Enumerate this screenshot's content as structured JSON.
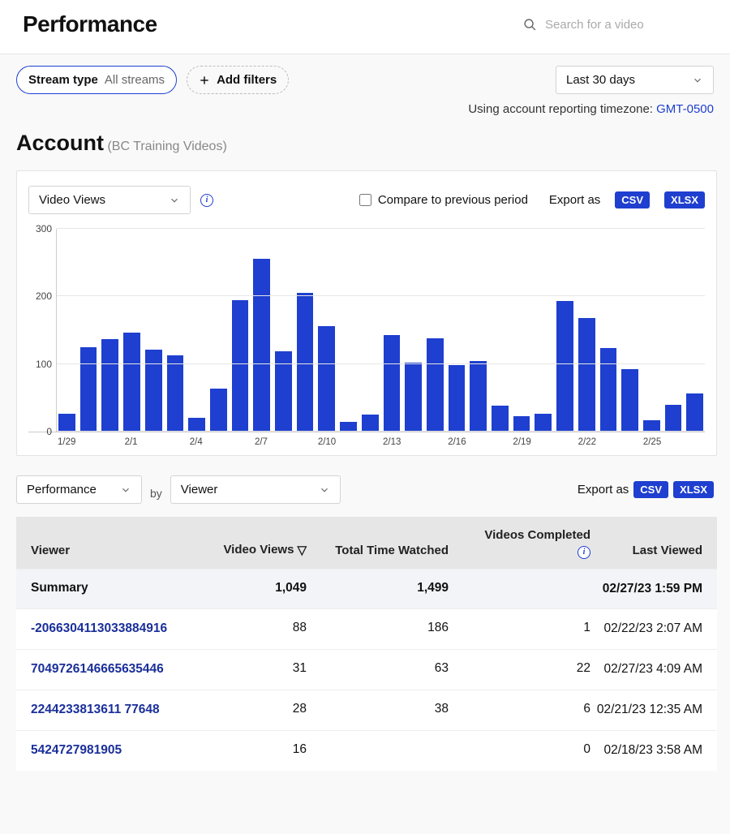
{
  "page": {
    "title": "Performance"
  },
  "search": {
    "placeholder": "Search for a video"
  },
  "filters": {
    "stream_label": "Stream type",
    "stream_value": "All streams",
    "add_label": "Add filters",
    "range_label": "Last 30 days"
  },
  "timezone": {
    "prefix": "Using account reporting timezone: ",
    "value": "GMT-0500"
  },
  "account": {
    "title": "Account",
    "subtitle": "(BC Training Videos)"
  },
  "chart": {
    "type": "bar",
    "metric_label": "Video Views",
    "compare_label": "Compare to previous period",
    "export_label": "Export as",
    "export_csv": "CSV",
    "export_xlsx": "XLSX",
    "ylim": [
      0,
      300
    ],
    "yticks": [
      0,
      100,
      200,
      300
    ],
    "bar_color": "#1e3fcf",
    "grid_color": "#e6e6e6",
    "data": [
      {
        "x": "1/29",
        "y": 27
      },
      {
        "x": "",
        "y": 125
      },
      {
        "x": "",
        "y": 137
      },
      {
        "x": "2/1",
        "y": 147
      },
      {
        "x": "",
        "y": 121
      },
      {
        "x": "",
        "y": 113
      },
      {
        "x": "2/4",
        "y": 21
      },
      {
        "x": "",
        "y": 64
      },
      {
        "x": "",
        "y": 194
      },
      {
        "x": "2/7",
        "y": 256
      },
      {
        "x": "",
        "y": 119
      },
      {
        "x": "",
        "y": 205
      },
      {
        "x": "2/10",
        "y": 156
      },
      {
        "x": "",
        "y": 14
      },
      {
        "x": "",
        "y": 25
      },
      {
        "x": "2/13",
        "y": 143
      },
      {
        "x": "",
        "y": 102
      },
      {
        "x": "",
        "y": 138
      },
      {
        "x": "2/16",
        "y": 99
      },
      {
        "x": "",
        "y": 105
      },
      {
        "x": "",
        "y": 39
      },
      {
        "x": "2/19",
        "y": 23
      },
      {
        "x": "",
        "y": 27
      },
      {
        "x": "",
        "y": 193
      },
      {
        "x": "2/22",
        "y": 168
      },
      {
        "x": "",
        "y": 124
      },
      {
        "x": "",
        "y": 92
      },
      {
        "x": "2/25",
        "y": 17
      },
      {
        "x": "",
        "y": 40
      },
      {
        "x": "",
        "y": 57
      }
    ]
  },
  "table_controls": {
    "primary": "Performance",
    "by": "by",
    "secondary": "Viewer",
    "export_label": "Export as",
    "export_csv": "CSV",
    "export_xlsx": "XLSX"
  },
  "table": {
    "columns": {
      "viewer": "Viewer",
      "views": "Video Views",
      "time": "Total Time Watched",
      "completed": "Videos Completed",
      "last": "Last Viewed"
    },
    "summary": {
      "label": "Summary",
      "views": "1,049",
      "time": "1,499",
      "completed": "",
      "last": "02/27/23 1:59 PM"
    },
    "rows": [
      {
        "viewer": "-2066304113033884916",
        "views": "88",
        "time": "186",
        "completed": "1",
        "last": "02/22/23 2:07 AM"
      },
      {
        "viewer": "7049726146665635446",
        "views": "31",
        "time": "63",
        "completed": "22",
        "last": "02/27/23 4:09 AM"
      },
      {
        "viewer": "2244233813611 77648",
        "views": "28",
        "time": "38",
        "completed": "6",
        "last": "02/21/23 12:35 AM"
      },
      {
        "viewer": "5424727981905",
        "views": "16",
        "time": "",
        "completed": "0",
        "last": "02/18/23 3:58 AM"
      }
    ]
  }
}
